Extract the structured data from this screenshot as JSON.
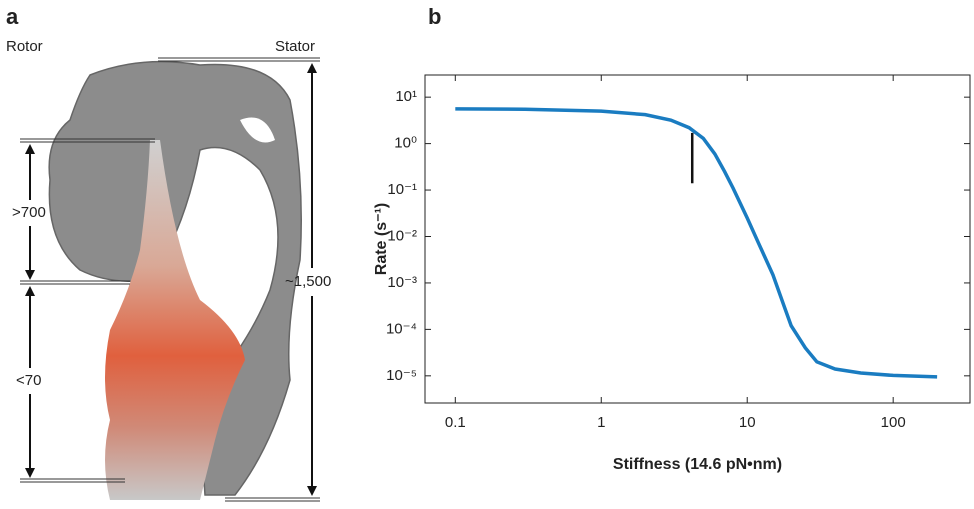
{
  "panel_a": {
    "label": "a",
    "rotor": "Rotor",
    "stator": "Stator",
    "upper": ">700",
    "lower": "<70",
    "total": "~1,500"
  },
  "chart_data": {
    "type": "line",
    "panel_label": "b",
    "x_label": "Stiffness (14.6 pN•nm)",
    "y_label": "Rate (s⁻¹)",
    "xlog": true,
    "ylog": true,
    "xlim": [
      0.062,
      336
    ],
    "ylim": [
      2.6e-06,
      30
    ],
    "xticks": [
      0.1,
      1,
      10,
      100
    ],
    "yticks": [
      {
        "value": 10,
        "label": "10¹"
      },
      {
        "value": 1,
        "label": "10⁰"
      },
      {
        "value": 0.1,
        "label": "10⁻¹"
      },
      {
        "value": 0.01,
        "label": "10⁻²"
      },
      {
        "value": 0.001,
        "label": "10⁻³"
      },
      {
        "value": 0.0001,
        "label": "10⁻⁴"
      },
      {
        "value": 1e-05,
        "label": "10⁻⁵"
      }
    ],
    "series": [
      {
        "color": "#1a7cc1",
        "x": [
          0.1,
          0.3,
          1,
          2,
          3,
          4,
          5,
          6,
          7,
          8,
          10,
          12,
          15,
          18,
          20,
          25,
          30,
          40,
          60,
          100,
          200
        ],
        "values": [
          5.6,
          5.5,
          5.0,
          4.2,
          3.2,
          2.2,
          1.3,
          0.6,
          0.25,
          0.11,
          0.025,
          0.007,
          0.0015,
          0.0003,
          0.00012,
          4e-05,
          2e-05,
          1.4e-05,
          1.15e-05,
          1.02e-05,
          9.5e-06
        ]
      }
    ],
    "marker": {
      "x": 4.2,
      "y": [
        0.14,
        1.7
      ],
      "color": "#111"
    }
  }
}
